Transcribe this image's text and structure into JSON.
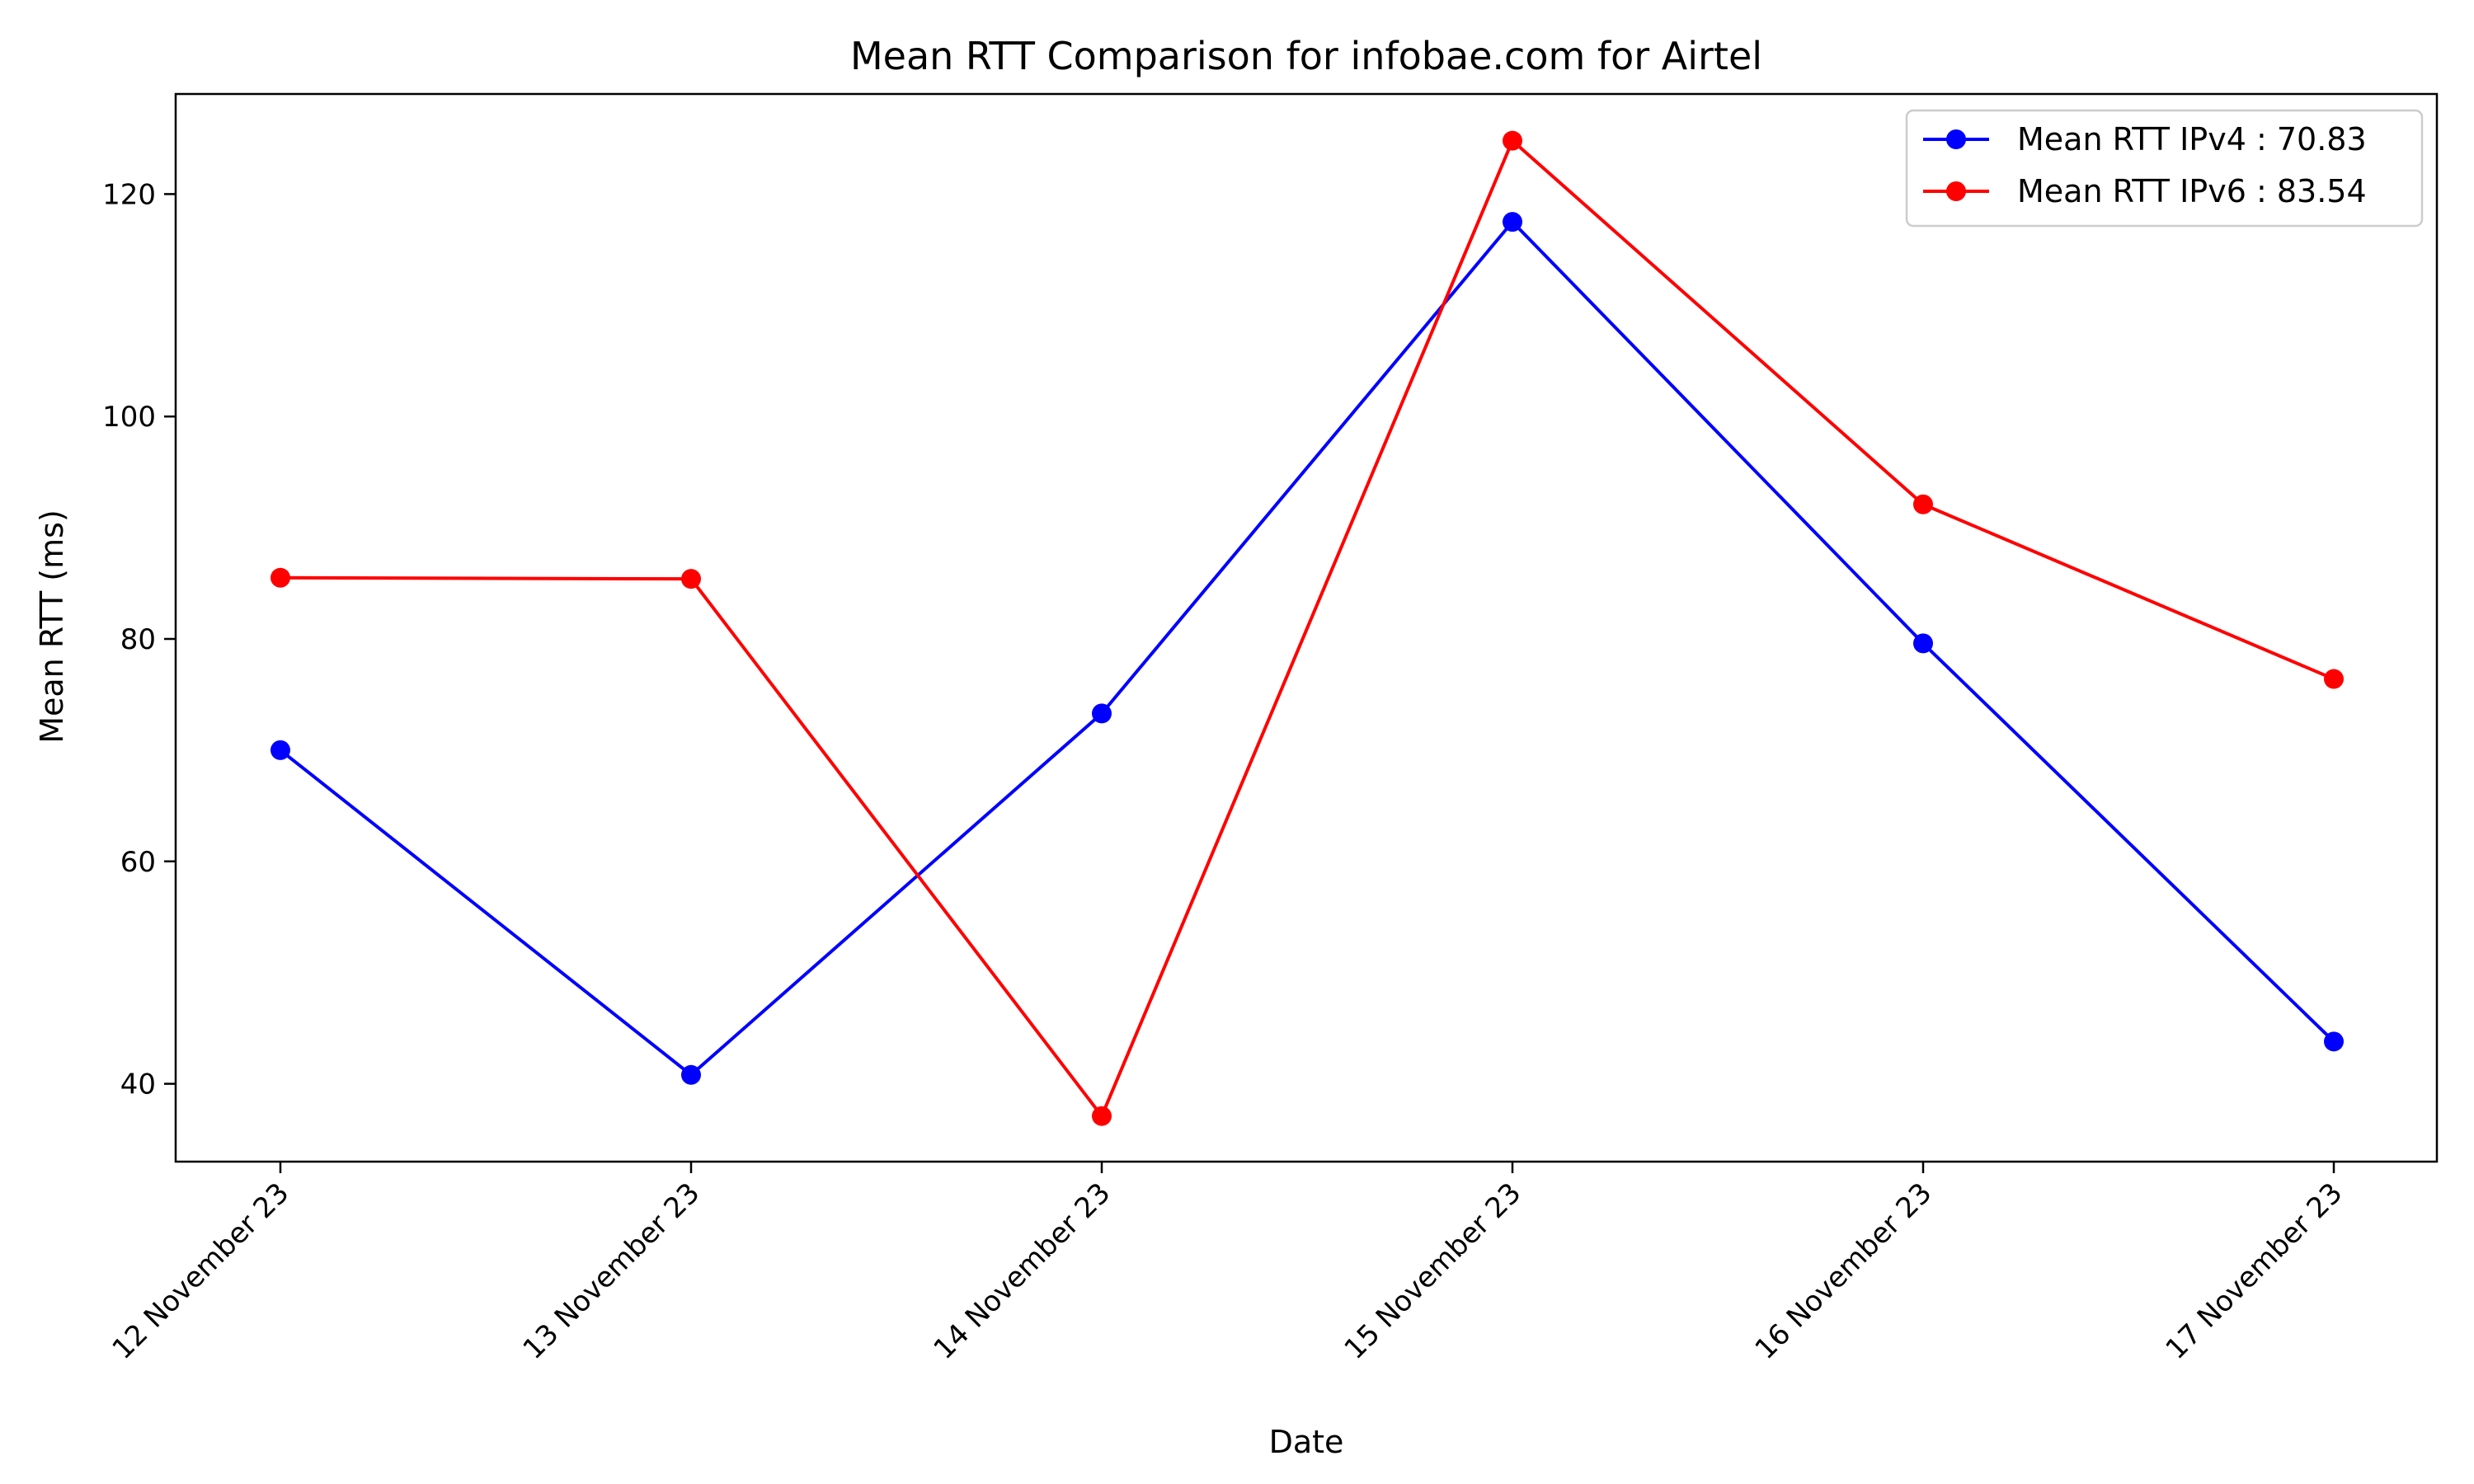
{
  "chart_data": {
    "type": "line",
    "title": "Mean RTT Comparison for infobae.com for Airtel",
    "xlabel": "Date",
    "ylabel": "Mean RTT (ms)",
    "categories": [
      "12 November 23",
      "13 November 23",
      "14 November 23",
      "15 November 23",
      "16 November 23",
      "17 November 23"
    ],
    "ylim": [
      33,
      129
    ],
    "yticks": [
      40,
      60,
      80,
      100,
      120
    ],
    "grid": false,
    "legend_position": "top-right",
    "series": [
      {
        "name": "Mean RTT IPv4 : 70.83",
        "color": "#0000ff",
        "marker": "circle",
        "values": [
          70.0,
          40.8,
          73.3,
          117.5,
          79.6,
          43.8
        ]
      },
      {
        "name": "Mean RTT IPv6 : 83.54",
        "color": "#ff0000",
        "marker": "circle",
        "values": [
          85.5,
          85.4,
          37.1,
          124.8,
          92.1,
          76.4
        ]
      }
    ]
  }
}
